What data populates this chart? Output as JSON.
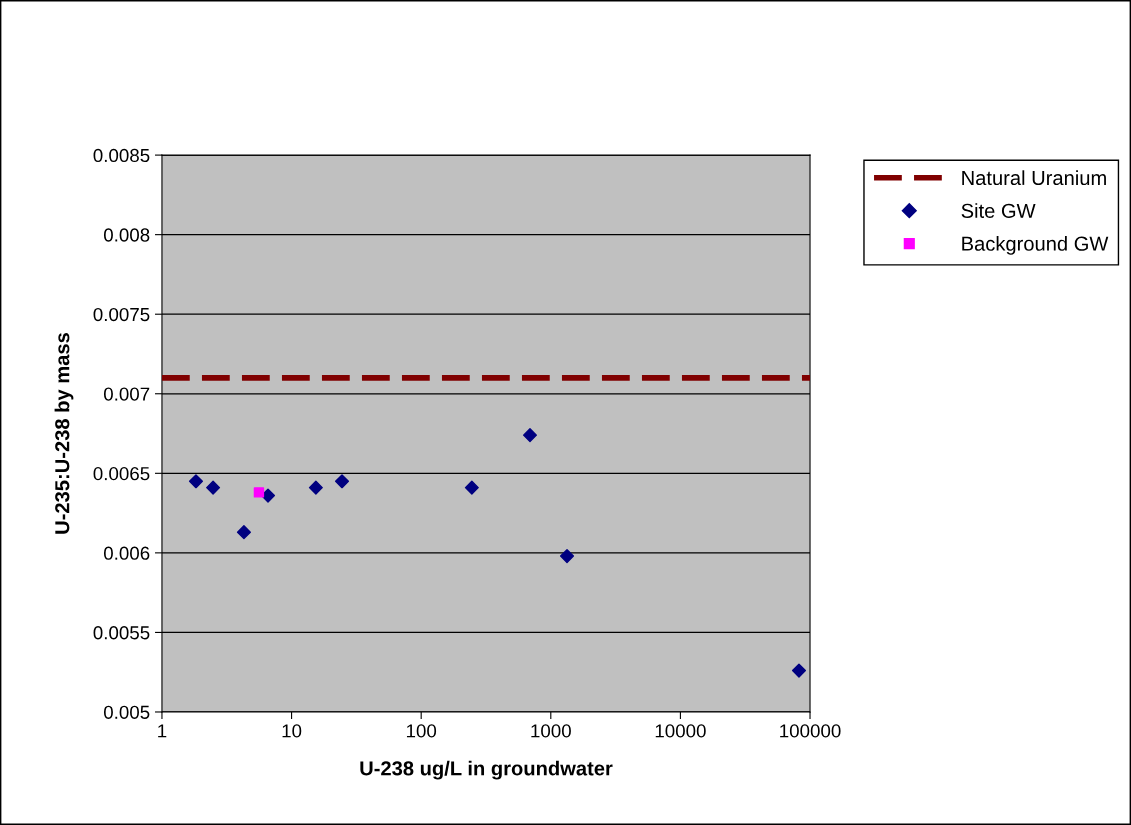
{
  "chart_data": {
    "type": "scatter",
    "xlabel": "U-238 ug/L in groundwater",
    "ylabel": "U-235:U-238 by mass",
    "log": "x",
    "xlim": [
      1,
      100000
    ],
    "xticks": [
      1,
      10,
      100,
      1000,
      10000,
      100000
    ],
    "ylim": [
      0.005,
      0.0085
    ],
    "yticks": [
      0.005,
      0.0055,
      0.006,
      0.0065,
      0.007,
      0.0075,
      0.008,
      0.0085
    ],
    "grid": "y",
    "legend": "right",
    "ref_lines": [
      {
        "axis": "y",
        "value": 0.0071,
        "label": "Natural Uranium",
        "color": "#800000",
        "line_style": "dashed"
      }
    ],
    "series": [
      {
        "name": "Site GW",
        "color": "#000080",
        "marker": "diamond",
        "x": [
          1.83,
          2.48,
          4.29,
          6.58,
          15.4,
          24.5,
          246,
          691,
          1334,
          82200
        ],
        "values": [
          0.00645,
          0.00641,
          0.00613,
          0.00636,
          0.00641,
          0.00645,
          0.00641,
          0.00674,
          0.00598,
          0.00526
        ]
      },
      {
        "name": "Background GW",
        "color": "#ff00ff",
        "marker": "square",
        "x": [
          5.6
        ],
        "values": [
          0.00638
        ]
      }
    ]
  }
}
